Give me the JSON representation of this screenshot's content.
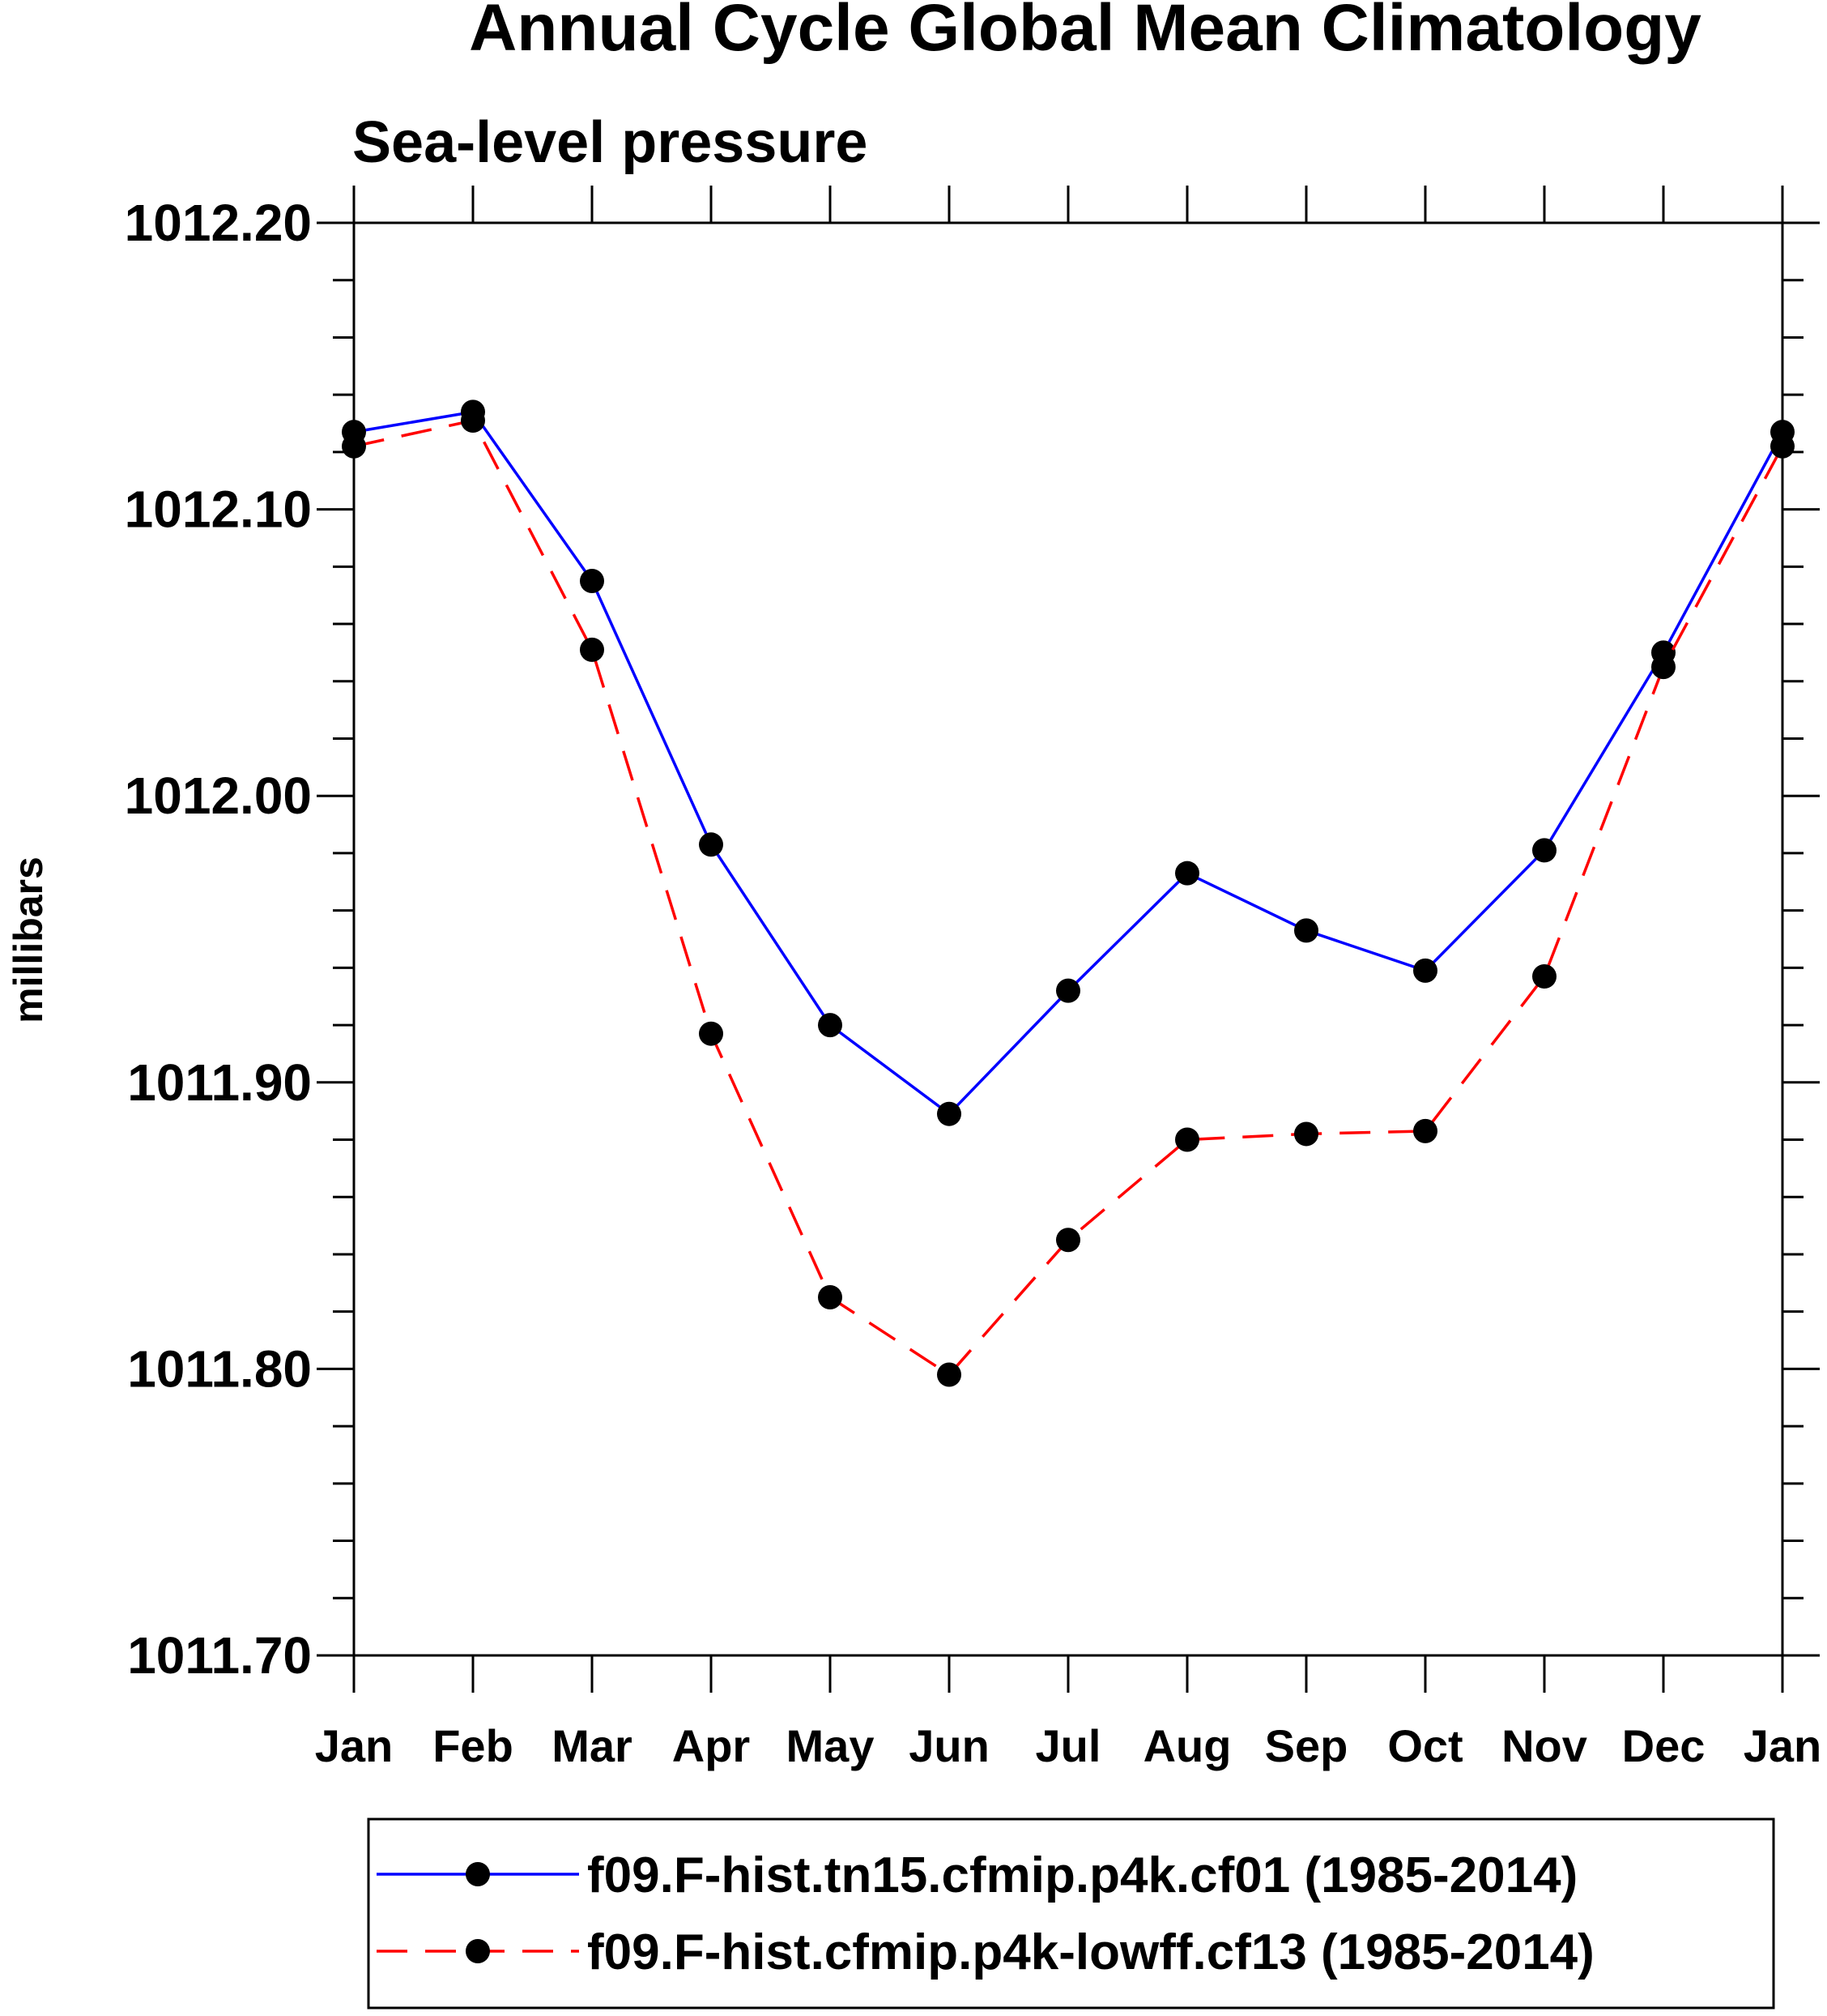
{
  "chart_data": {
    "type": "line",
    "title": "Annual Cycle Global Mean Climatology",
    "subtitle": "Sea-level pressure",
    "xlabel": "",
    "ylabel": "millibars",
    "categories": [
      "Jan",
      "Feb",
      "Mar",
      "Apr",
      "May",
      "Jun",
      "Jul",
      "Aug",
      "Sep",
      "Oct",
      "Nov",
      "Dec",
      "Jan"
    ],
    "ylim": [
      1011.7,
      1012.2
    ],
    "yticks": [
      "1011.70",
      "1011.80",
      "1011.90",
      "1012.00",
      "1012.10",
      "1012.20"
    ],
    "ytick_values": [
      1011.7,
      1011.8,
      1011.9,
      1012.0,
      1012.1,
      1012.2
    ],
    "grid": false,
    "legend_position": "bottom",
    "series": [
      {
        "name": "f09.F-hist.tn15.cfmip.p4k.cf01 (1985-2014)",
        "color": "#0000ff",
        "dash": "solid",
        "values": [
          1012.127,
          1012.134,
          1012.075,
          1011.983,
          1011.92,
          1011.889,
          1011.932,
          1011.973,
          1011.953,
          1011.939,
          1011.981,
          1012.05,
          1012.127
        ]
      },
      {
        "name": "f09.F-hist.cfmip.p4k-lowff.cf13 (1985-2014)",
        "color": "#ff0000",
        "dash": "dashed",
        "values": [
          1012.122,
          1012.131,
          1012.051,
          1011.917,
          1011.825,
          1011.798,
          1011.845,
          1011.88,
          1011.882,
          1011.883,
          1011.937,
          1012.045,
          1012.122
        ]
      }
    ]
  }
}
